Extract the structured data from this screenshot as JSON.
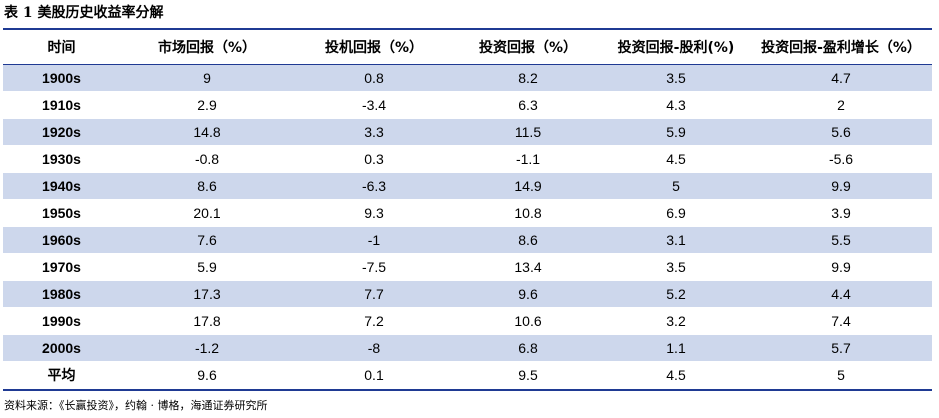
{
  "caption": "表 1  美股历史收益率分解",
  "table": {
    "headers": [
      "时间",
      "市场回报（%）",
      "投机回报（%）",
      "投资回报（%）",
      "投资回报-股利(%)",
      "投资回报-盈利增长（%）"
    ],
    "rows": [
      {
        "period": "1900s",
        "market": "9",
        "speculative": "0.8",
        "investment": "8.2",
        "dividend": "3.5",
        "earnings_growth": "4.7"
      },
      {
        "period": "1910s",
        "market": "2.9",
        "speculative": "-3.4",
        "investment": "6.3",
        "dividend": "4.3",
        "earnings_growth": "2"
      },
      {
        "period": "1920s",
        "market": "14.8",
        "speculative": "3.3",
        "investment": "11.5",
        "dividend": "5.9",
        "earnings_growth": "5.6"
      },
      {
        "period": "1930s",
        "market": "-0.8",
        "speculative": "0.3",
        "investment": "-1.1",
        "dividend": "4.5",
        "earnings_growth": "-5.6"
      },
      {
        "period": "1940s",
        "market": "8.6",
        "speculative": "-6.3",
        "investment": "14.9",
        "dividend": "5",
        "earnings_growth": "9.9"
      },
      {
        "period": "1950s",
        "market": "20.1",
        "speculative": "9.3",
        "investment": "10.8",
        "dividend": "6.9",
        "earnings_growth": "3.9"
      },
      {
        "period": "1960s",
        "market": "7.6",
        "speculative": "-1",
        "investment": "8.6",
        "dividend": "3.1",
        "earnings_growth": "5.5"
      },
      {
        "period": "1970s",
        "market": "5.9",
        "speculative": "-7.5",
        "investment": "13.4",
        "dividend": "3.5",
        "earnings_growth": "9.9"
      },
      {
        "period": "1980s",
        "market": "17.3",
        "speculative": "7.7",
        "investment": "9.6",
        "dividend": "5.2",
        "earnings_growth": "4.4"
      },
      {
        "period": "1990s",
        "market": "17.8",
        "speculative": "7.2",
        "investment": "10.6",
        "dividend": "3.2",
        "earnings_growth": "7.4"
      },
      {
        "period": "2000s",
        "market": "-1.2",
        "speculative": "-8",
        "investment": "6.8",
        "dividend": "1.1",
        "earnings_growth": "5.7"
      },
      {
        "period": "平均",
        "market": "9.6",
        "speculative": "0.1",
        "investment": "9.5",
        "dividend": "4.5",
        "earnings_growth": "5"
      }
    ]
  },
  "source": "资料来源：《长赢投资》，约翰 · 博格，海通证券研究所",
  "colors": {
    "row_shade": "#cdd7ec",
    "rule": "#1f3a93"
  }
}
